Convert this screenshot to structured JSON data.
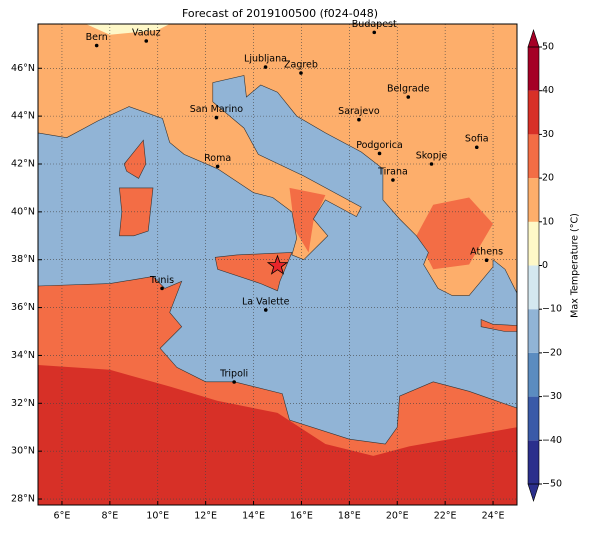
{
  "title": "Forecast of 2019100500 (f024-048)",
  "map": {
    "xlim": [
      5,
      25
    ],
    "ylim": [
      27.75,
      47.85
    ],
    "xticks": [
      {
        "value": 6,
        "label": "6°E"
      },
      {
        "value": 8,
        "label": "8°E"
      },
      {
        "value": 10,
        "label": "10°E"
      },
      {
        "value": 12,
        "label": "12°E"
      },
      {
        "value": 14,
        "label": "14°E"
      },
      {
        "value": 16,
        "label": "16°E"
      },
      {
        "value": 18,
        "label": "18°E"
      },
      {
        "value": 20,
        "label": "20°E"
      },
      {
        "value": 22,
        "label": "22°E"
      },
      {
        "value": 24,
        "label": "24°E"
      }
    ],
    "yticks": [
      {
        "value": 28,
        "label": "28°N"
      },
      {
        "value": 30,
        "label": "30°N"
      },
      {
        "value": 32,
        "label": "32°N"
      },
      {
        "value": 34,
        "label": "34°N"
      },
      {
        "value": 36,
        "label": "36°N"
      },
      {
        "value": 38,
        "label": "38°N"
      },
      {
        "value": 40,
        "label": "40°N"
      },
      {
        "value": 42,
        "label": "42°N"
      },
      {
        "value": 44,
        "label": "44°N"
      },
      {
        "value": 46,
        "label": "46°N"
      }
    ],
    "grid": true,
    "cities": [
      "Bern",
      "Vaduz",
      "Budapest",
      "Ljubljana",
      "Zagreb",
      "Belgrade",
      "Sarajevo",
      "San Marino",
      "Roma",
      "Podgorica",
      "Skopje",
      "Sofia",
      "Tirana",
      "Athens",
      "Tunis",
      "La Valette",
      "Tripoli"
    ]
  },
  "colorbar": {
    "label": "Max Temperature (°C)",
    "lim": [
      -50,
      50
    ],
    "ticks": [
      {
        "value": -50,
        "label": "−50"
      },
      {
        "value": -40,
        "label": "−40"
      },
      {
        "value": -30,
        "label": "−30"
      },
      {
        "value": -20,
        "label": "−20"
      },
      {
        "value": -10,
        "label": "−10"
      },
      0,
      10,
      20,
      30,
      40,
      50
    ],
    "colors": [
      "#2b2f8c",
      "#3a5aa8",
      "#5b8cc0",
      "#91b4d6",
      "#d4e8f0",
      "#fef8c8",
      "#fdae6b",
      "#f36d45",
      "#d73027",
      "#a50026"
    ]
  }
}
